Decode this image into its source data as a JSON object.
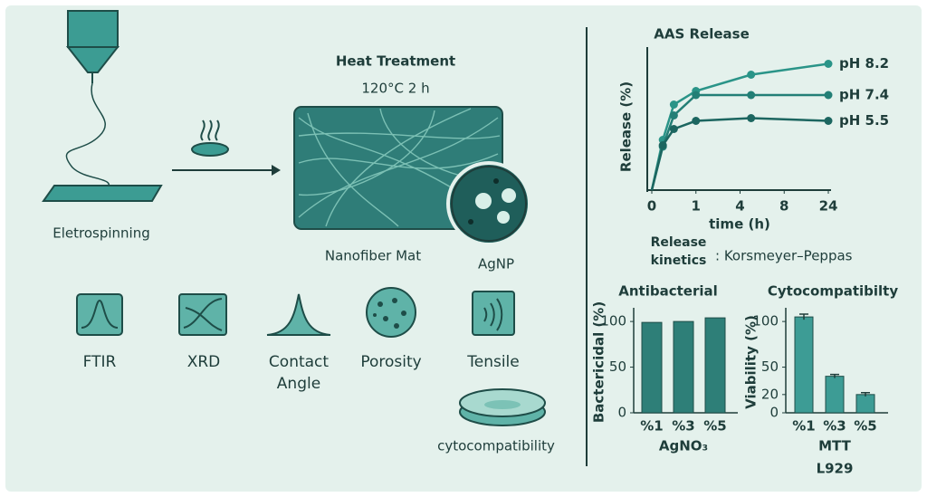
{
  "process": {
    "electrospinning": "Eletrospinning",
    "heat_title": "Heat Treatment",
    "heat_conditions": "120°C 2 h",
    "mat": "Nanofiber Mat",
    "agnp": "AgNP"
  },
  "characterization": [
    {
      "label": "FTIR"
    },
    {
      "label": "XRD"
    },
    {
      "label": "Contact Angle"
    },
    {
      "label": "Porosity"
    },
    {
      "label": "Tensile"
    },
    {
      "label": "cytocompatibility"
    }
  ],
  "kinetics": {
    "label": "Release kinetics",
    "model": ": Korsmeyer–Peppas"
  },
  "chart_data": [
    {
      "type": "line",
      "title": "AAS Release",
      "x_label": "time (h)",
      "y_label": "Release (%)",
      "x": [
        0,
        0.25,
        0.5,
        1,
        5,
        24
      ],
      "xlim": [
        0,
        24
      ],
      "xticks": [
        0,
        1,
        4,
        8,
        24
      ],
      "ylim": [
        0,
        100
      ],
      "series": [
        {
          "name": "pH 8.2",
          "color": "#2a9488",
          "values": [
            0,
            37,
            63,
            73,
            85,
            93
          ]
        },
        {
          "name": "pH 7.4",
          "color": "#237f76",
          "values": [
            0,
            32,
            55,
            70,
            70,
            70
          ]
        },
        {
          "name": "pH 5.5",
          "color": "#1c6660",
          "values": [
            0,
            33,
            45,
            51,
            53,
            51
          ]
        }
      ]
    },
    {
      "type": "bar",
      "title": "Antibacterial",
      "y_label": "Bactericidal (%)",
      "x_label": "AgNO₃",
      "categories": [
        "%1",
        "%3",
        "%5"
      ],
      "values": [
        99,
        100,
        104
      ],
      "color": "#2e7f78",
      "ylim": [
        0,
        115
      ],
      "yticks": [
        0,
        50,
        100
      ]
    },
    {
      "type": "bar",
      "title": "Cytocompatibilty",
      "y_label": "Viability (%)",
      "x_label": "MTT",
      "x_sublabel": "L929",
      "categories": [
        "%1",
        "%3",
        "%5"
      ],
      "values": [
        105,
        40,
        20
      ],
      "errors": [
        3,
        2,
        2
      ],
      "color": "#3d9c95",
      "ylim": [
        0,
        115
      ],
      "yticks": [
        0,
        20,
        50,
        100
      ]
    }
  ]
}
